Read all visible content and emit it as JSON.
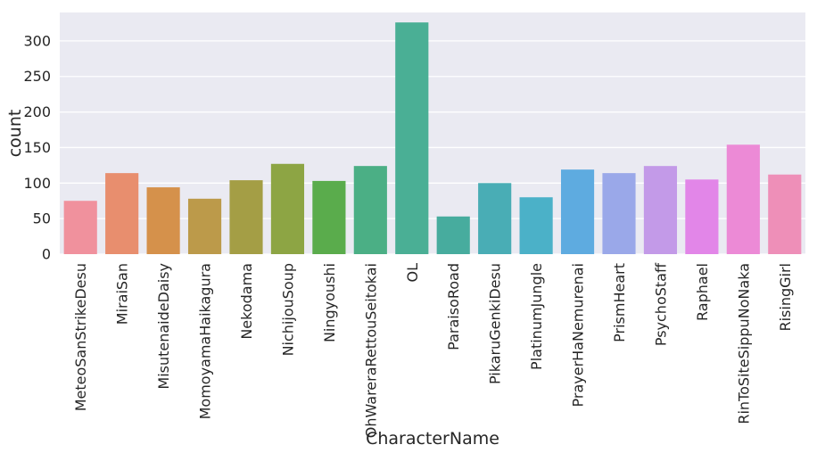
{
  "chart_data": {
    "type": "bar",
    "xlabel": "CharacterName",
    "ylabel": "count",
    "ylim": [
      0,
      340
    ],
    "yticks": [
      0,
      50,
      100,
      150,
      200,
      250,
      300
    ],
    "grid": true,
    "background": "#eaeaf2",
    "categories": [
      "MeteoSanStrikeDesu",
      "MiraiSan",
      "MisutenaideDaisy",
      "MomoyamaHaikagura",
      "Nekodama",
      "NichijouSoup",
      "Ningyoushi",
      "OhWareraRettouSeitokai",
      "OL",
      "ParaisoRoad",
      "PikaruGenkiDesu",
      "PlatinumJungle",
      "PrayerHaNemurenai",
      "PrismHeart",
      "PsychoStaff",
      "Raphael",
      "RinToSiteSippuNoNaka",
      "RisingGirl"
    ],
    "values": [
      75,
      114,
      94,
      78,
      104,
      127,
      103,
      124,
      326,
      53,
      100,
      80,
      119,
      114,
      124,
      105,
      154,
      112
    ],
    "colors": [
      "#f0919d",
      "#e88e6e",
      "#d5914b",
      "#bc9a4a",
      "#a49e45",
      "#8da544",
      "#5aac4c",
      "#4baf85",
      "#4aaf95",
      "#47ac9e",
      "#49adb5",
      "#4bb1c8",
      "#5eabe0",
      "#9aa8e9",
      "#c39ae8",
      "#e286e8",
      "#ec8ad6",
      "#ee8fb8"
    ]
  }
}
